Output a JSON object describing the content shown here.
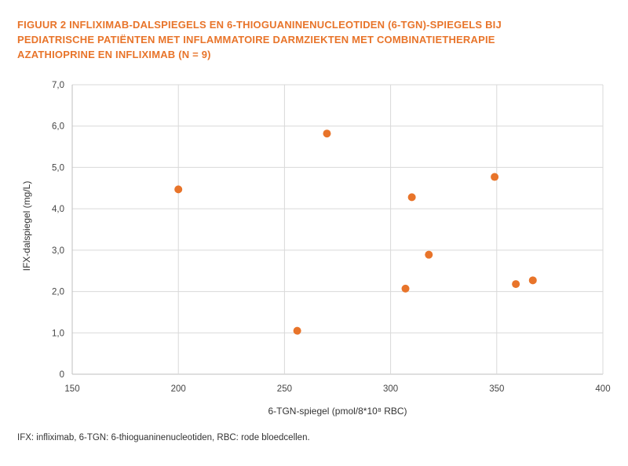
{
  "title_lines": [
    "FIGUUR 2  INFLIXIMAB-DALSPIEGELS EN 6-THIOGUANINENUCLEOTIDEN (6-TGN)-SPIEGELS BIJ",
    "PEDIATRISCHE PATIËNTEN MET INFLAMMATOIRE DARMZIEKTEN MET COMBINATIETHERAPIE",
    "AZATHIOPRINE EN INFLIXIMAB (N = 9)"
  ],
  "footnote": "IFX: infliximab, 6-TGN: 6-thioguaninenucleotiden, RBC: rode bloedcellen.",
  "colors": {
    "title": "#e8742a",
    "point": "#e8742a",
    "grid": "#d9d9d9"
  },
  "chart_data": {
    "type": "scatter",
    "xlabel": "6-TGN-spiegel (pmol/8*10⁸ RBC)",
    "ylabel": "IFX-dalspiegel (mg/L)",
    "xlim": [
      150,
      400
    ],
    "ylim": [
      0,
      7
    ],
    "x_ticks": [
      "150",
      "200",
      "250",
      "300",
      "350",
      "400"
    ],
    "y_ticks": [
      "0",
      "1,0",
      "2,0",
      "3,0",
      "4,0",
      "5,0",
      "6,0",
      "7,0"
    ],
    "grid": true,
    "points": [
      {
        "x": 200,
        "y": 4.47
      },
      {
        "x": 256,
        "y": 1.05
      },
      {
        "x": 270,
        "y": 5.82
      },
      {
        "x": 307,
        "y": 2.07
      },
      {
        "x": 310,
        "y": 4.28
      },
      {
        "x": 318,
        "y": 2.89
      },
      {
        "x": 349,
        "y": 4.77
      },
      {
        "x": 359,
        "y": 2.18
      },
      {
        "x": 367,
        "y": 2.27
      }
    ]
  }
}
